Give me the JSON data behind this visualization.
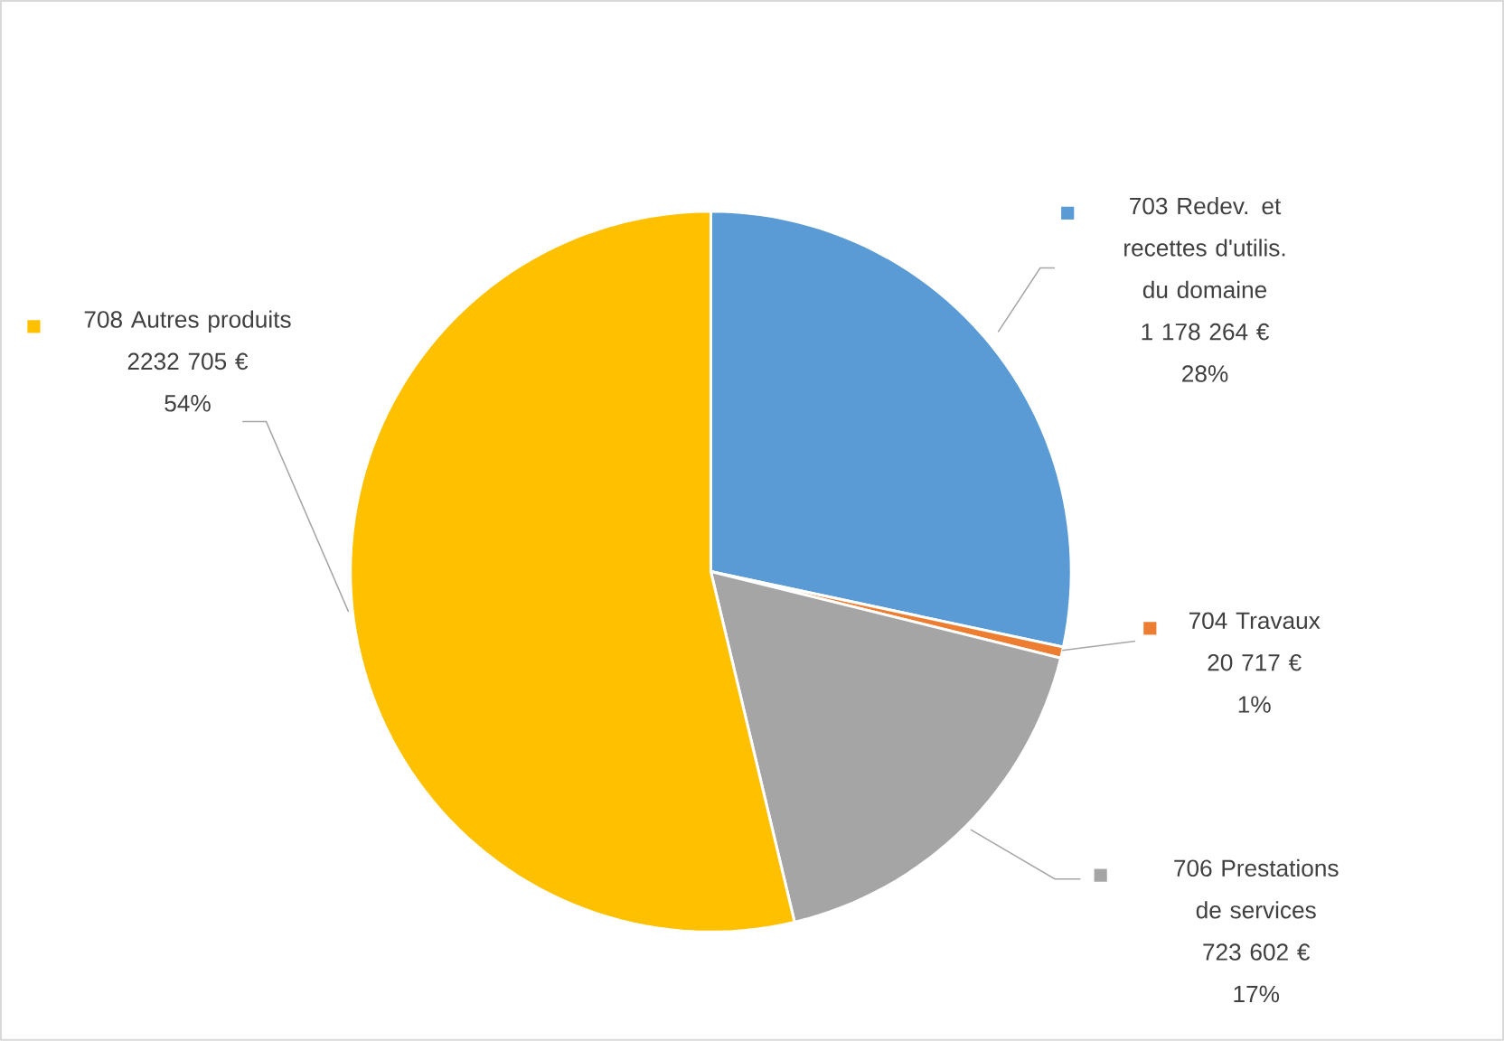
{
  "chart_data": {
    "type": "pie",
    "categories": [
      "703 Redev. et recettes d'utilis. du domaine",
      "704 Travaux",
      "706 Prestations de services",
      "708 Autres produits"
    ],
    "values": [
      1178264,
      20717,
      723602,
      2232705
    ],
    "colors": [
      "#5b9bd5",
      "#ed7d31",
      "#a5a5a5",
      "#ffc000"
    ],
    "value_labels": [
      "1 178 264 €",
      "20 717 €",
      "723 602 €",
      "2232 705 €"
    ],
    "annotations": [
      "28%",
      "1%",
      "17%",
      "54%"
    ],
    "legend": "top left"
  }
}
